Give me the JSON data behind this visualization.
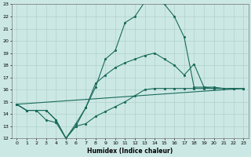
{
  "xlabel": "Humidex (Indice chaleur)",
  "bg_color": "#cce8e5",
  "grid_color": "#b0d0cc",
  "line_color": "#1a6b5a",
  "xlim": [
    -0.5,
    23.5
  ],
  "ylim": [
    12,
    23
  ],
  "xtick_labels": [
    "0",
    "1",
    "2",
    "3",
    "4",
    "5",
    "6",
    "7",
    "8",
    "9",
    "10",
    "11",
    "12",
    "13",
    "14",
    "15",
    "16",
    "17",
    "18",
    "19",
    "20",
    "21",
    "22",
    "23"
  ],
  "ytick_labels": [
    "12",
    "13",
    "14",
    "15",
    "16",
    "17",
    "18",
    "19",
    "20",
    "21",
    "22",
    "23"
  ],
  "xticks": [
    0,
    1,
    2,
    3,
    4,
    5,
    6,
    7,
    8,
    9,
    10,
    11,
    12,
    13,
    14,
    15,
    16,
    17,
    18,
    19,
    20,
    21,
    22,
    23
  ],
  "yticks": [
    12,
    13,
    14,
    15,
    16,
    17,
    18,
    19,
    20,
    21,
    22,
    23
  ],
  "line1_x": [
    0,
    1,
    2,
    3,
    4,
    5,
    6,
    7,
    8,
    9,
    10,
    11,
    12,
    13,
    14,
    15,
    16,
    17,
    18,
    19,
    20,
    21,
    22,
    23
  ],
  "line1_y": [
    14.8,
    14.3,
    14.3,
    14.3,
    13.5,
    12.0,
    13.2,
    14.5,
    16.2,
    18.5,
    19.2,
    21.5,
    22.0,
    23.2,
    23.3,
    23.0,
    22.0,
    20.3,
    16.2,
    16.2,
    16.1,
    16.1,
    16.1,
    16.1
  ],
  "line2_x": [
    0,
    1,
    2,
    3,
    4,
    5,
    6,
    7,
    8,
    9,
    10,
    11,
    12,
    13,
    14,
    15,
    16,
    17,
    18,
    19,
    20,
    21,
    22,
    23
  ],
  "line2_y": [
    14.8,
    14.3,
    14.3,
    13.5,
    13.3,
    12.0,
    13.0,
    14.5,
    16.5,
    17.2,
    17.8,
    18.2,
    18.5,
    18.8,
    19.0,
    18.5,
    18.0,
    17.2,
    18.1,
    16.2,
    16.2,
    16.1,
    16.1,
    16.1
  ],
  "line3_x": [
    0,
    1,
    2,
    3,
    4,
    5,
    6,
    7,
    8,
    9,
    10,
    11,
    12,
    13,
    14,
    15,
    16,
    17,
    18,
    19,
    20,
    21,
    22,
    23
  ],
  "line3_y": [
    14.8,
    14.3,
    14.3,
    14.3,
    13.5,
    12.0,
    13.0,
    13.2,
    13.8,
    14.2,
    14.6,
    15.0,
    15.5,
    16.0,
    16.1,
    16.1,
    16.1,
    16.1,
    16.1,
    16.1,
    16.1,
    16.1,
    16.1,
    16.1
  ],
  "line4_x": [
    0,
    23
  ],
  "line4_y": [
    14.8,
    16.1
  ]
}
